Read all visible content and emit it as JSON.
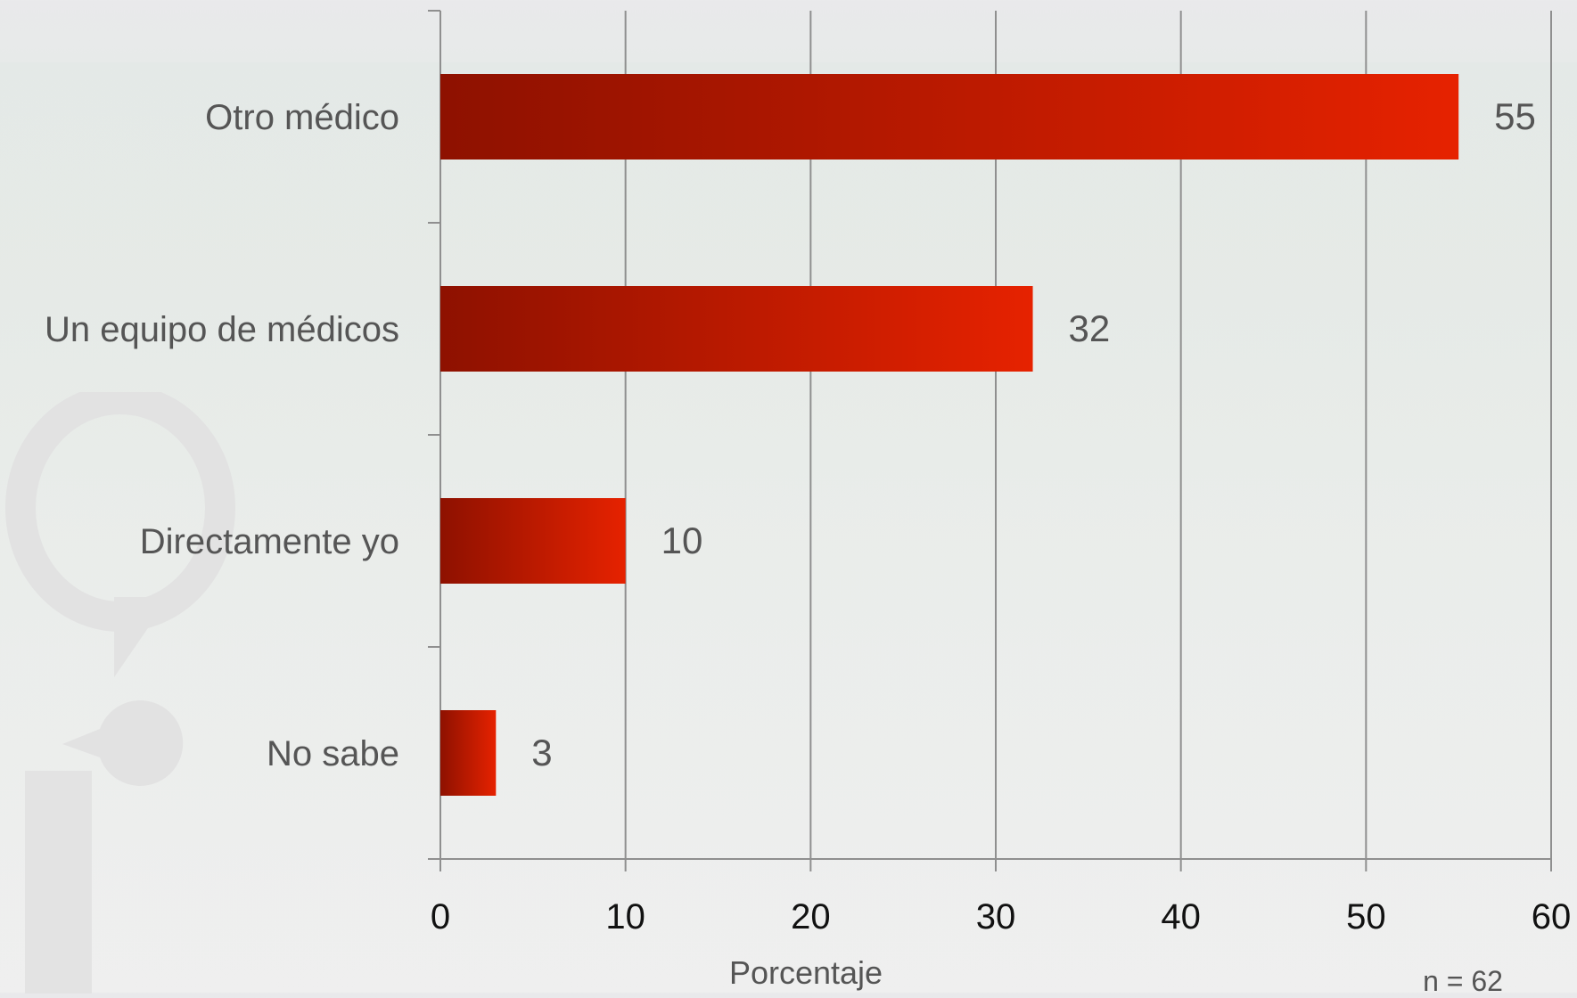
{
  "chart_data": {
    "type": "bar",
    "orientation": "horizontal",
    "categories": [
      "Otro médico",
      "Un equipo de médicos",
      "Directamente yo",
      "No sabe"
    ],
    "values": [
      55,
      32,
      10,
      3
    ],
    "xlabel": "Porcentaje",
    "xlim": [
      0,
      60
    ],
    "xticks": [
      0,
      10,
      20,
      30,
      40,
      50,
      60
    ],
    "grid": true,
    "bar_color_start": "#8e1100",
    "bar_color_end": "#e62200",
    "note": "n = 62"
  }
}
